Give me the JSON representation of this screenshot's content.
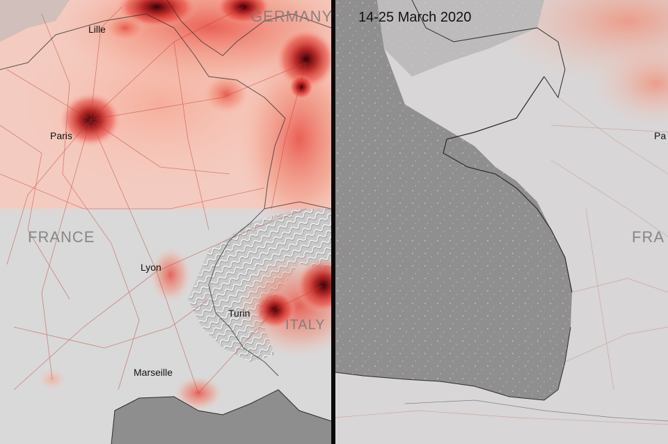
{
  "left_map": {
    "cities": [
      {
        "name": "Lille"
      },
      {
        "name": "Paris"
      },
      {
        "name": "Lyon"
      },
      {
        "name": "Turin"
      },
      {
        "name": "Marseille"
      }
    ],
    "countries": [
      {
        "name": "GERMANY"
      },
      {
        "name": "FRANCE"
      },
      {
        "name": "ITALY"
      }
    ]
  },
  "right_map": {
    "date_range": "14-25 March 2020",
    "partial_labels": {
      "city": "Pa",
      "country": "FRA"
    }
  },
  "colors": {
    "high_concentration": "#3a0008",
    "medium_concentration": "#e8453a",
    "low_concentration": "#f8c2b3",
    "land_base": "#d9d9d9",
    "sea": "#8e8e8e"
  }
}
